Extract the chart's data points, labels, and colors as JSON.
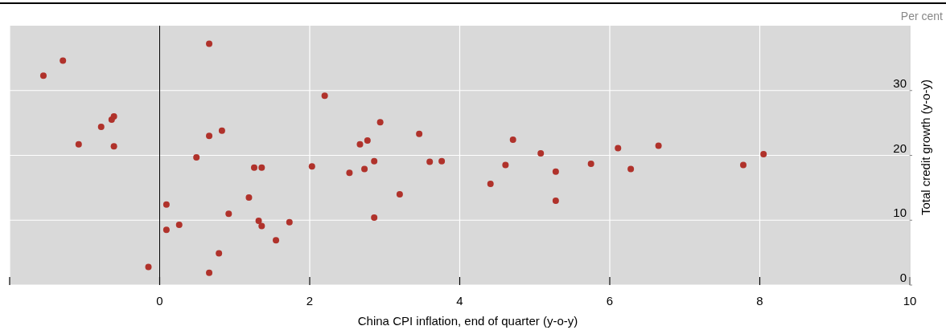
{
  "chart_data": {
    "type": "scatter",
    "xlabel": "China CPI inflation, end of quarter (y-o-y)",
    "ylabel": "Total credit growth (y-o-y)",
    "annotations": [
      "Per cent"
    ],
    "x": [
      -1.55,
      -1.29,
      -1.08,
      -0.78,
      -0.64,
      -0.61,
      -0.61,
      -0.15,
      0.09,
      0.09,
      0.26,
      0.49,
      0.66,
      0.66,
      0.66,
      0.83,
      0.79,
      0.92,
      1.19,
      1.26,
      1.36,
      1.32,
      1.36,
      1.55,
      1.73,
      2.03,
      2.2,
      2.53,
      2.67,
      2.77,
      2.73,
      2.86,
      2.86,
      2.94,
      3.2,
      3.46,
      3.6,
      3.76,
      4.41,
      4.61,
      4.71,
      5.08,
      5.28,
      5.28,
      5.75,
      6.11,
      6.28,
      6.65,
      7.78,
      8.05
    ],
    "values": [
      32.3,
      34.6,
      21.7,
      24.4,
      25.5,
      26.0,
      21.4,
      2.8,
      12.4,
      8.5,
      9.3,
      19.7,
      37.2,
      23.0,
      1.9,
      23.8,
      4.9,
      11.0,
      13.5,
      18.1,
      18.1,
      9.9,
      9.1,
      6.9,
      9.7,
      18.3,
      29.2,
      17.3,
      21.7,
      22.3,
      17.9,
      19.1,
      10.4,
      25.1,
      14.0,
      23.3,
      19.0,
      19.1,
      15.6,
      18.5,
      22.4,
      20.3,
      17.5,
      13.0,
      18.7,
      21.1,
      17.9,
      21.5,
      18.5,
      20.2
    ],
    "color": "#b0322b",
    "marker": "circle",
    "xlim": [
      -2,
      10
    ],
    "xticks": [
      {
        "value": -2,
        "label": null
      },
      0,
      2,
      4,
      6,
      8,
      10
    ],
    "ylim": [
      0,
      40
    ],
    "yticks": [
      0,
      10,
      20,
      30
    ],
    "ref_lines": [
      {
        "axis": "x",
        "value": 0,
        "color": "#000000"
      }
    ],
    "grid": true
  }
}
